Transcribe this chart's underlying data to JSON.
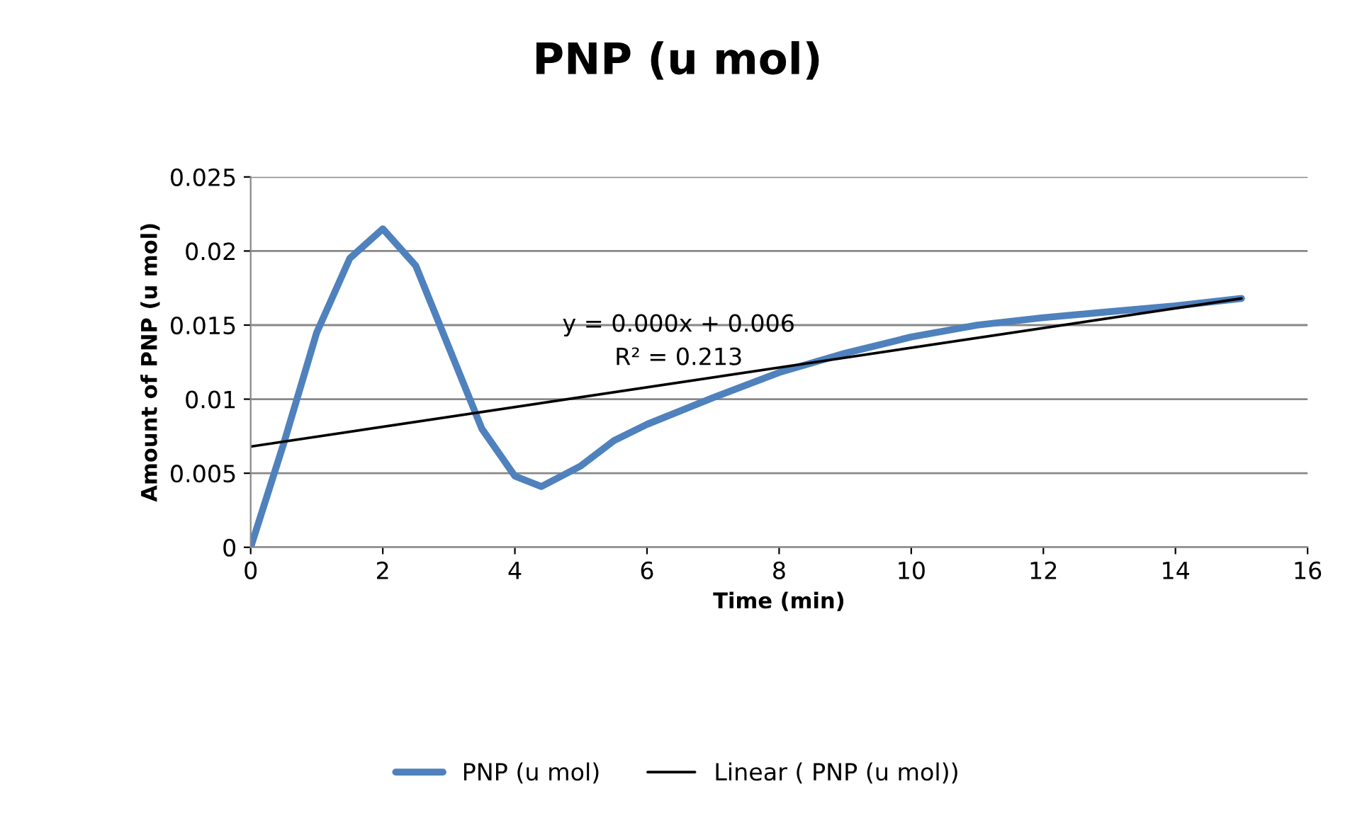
{
  "chart_data": {
    "type": "line",
    "title": "PNP (u mol)",
    "xlabel": "Time (min)",
    "ylabel": "Amount of PNP (u mol)",
    "xlim": [
      0,
      16
    ],
    "xticks": [
      0,
      2,
      4,
      6,
      8,
      10,
      12,
      14,
      16
    ],
    "ylim": [
      0,
      0.025
    ],
    "yticks": [
      0,
      0.005,
      0.01,
      0.015,
      0.02,
      0.025
    ],
    "grid": "y",
    "legend": "bottom",
    "line_style": "solid",
    "marker": "none",
    "annotations": [
      "y = 0.000x + 0.006",
      "R² = 0.213"
    ],
    "series": [
      {
        "name": "PNP (u mol)",
        "color": "#4f81bd",
        "x": [
          0,
          0.5,
          1,
          1.5,
          2,
          2.5,
          3,
          3.5,
          4,
          4.4,
          5,
          5.5,
          6,
          7,
          8,
          9,
          10,
          11,
          12,
          13,
          14,
          15
        ],
        "values": [
          0,
          0.007,
          0.0145,
          0.0195,
          0.0215,
          0.019,
          0.0135,
          0.008,
          0.0048,
          0.0041,
          0.0055,
          0.0072,
          0.0083,
          0.0101,
          0.0118,
          0.0131,
          0.0142,
          0.015,
          0.0155,
          0.0159,
          0.0163,
          0.0168
        ]
      },
      {
        "name": "Linear ( PNP (u mol))",
        "color": "#000000",
        "type": "line",
        "x": [
          0,
          15
        ],
        "values": [
          0.0068,
          0.0168
        ]
      }
    ]
  }
}
